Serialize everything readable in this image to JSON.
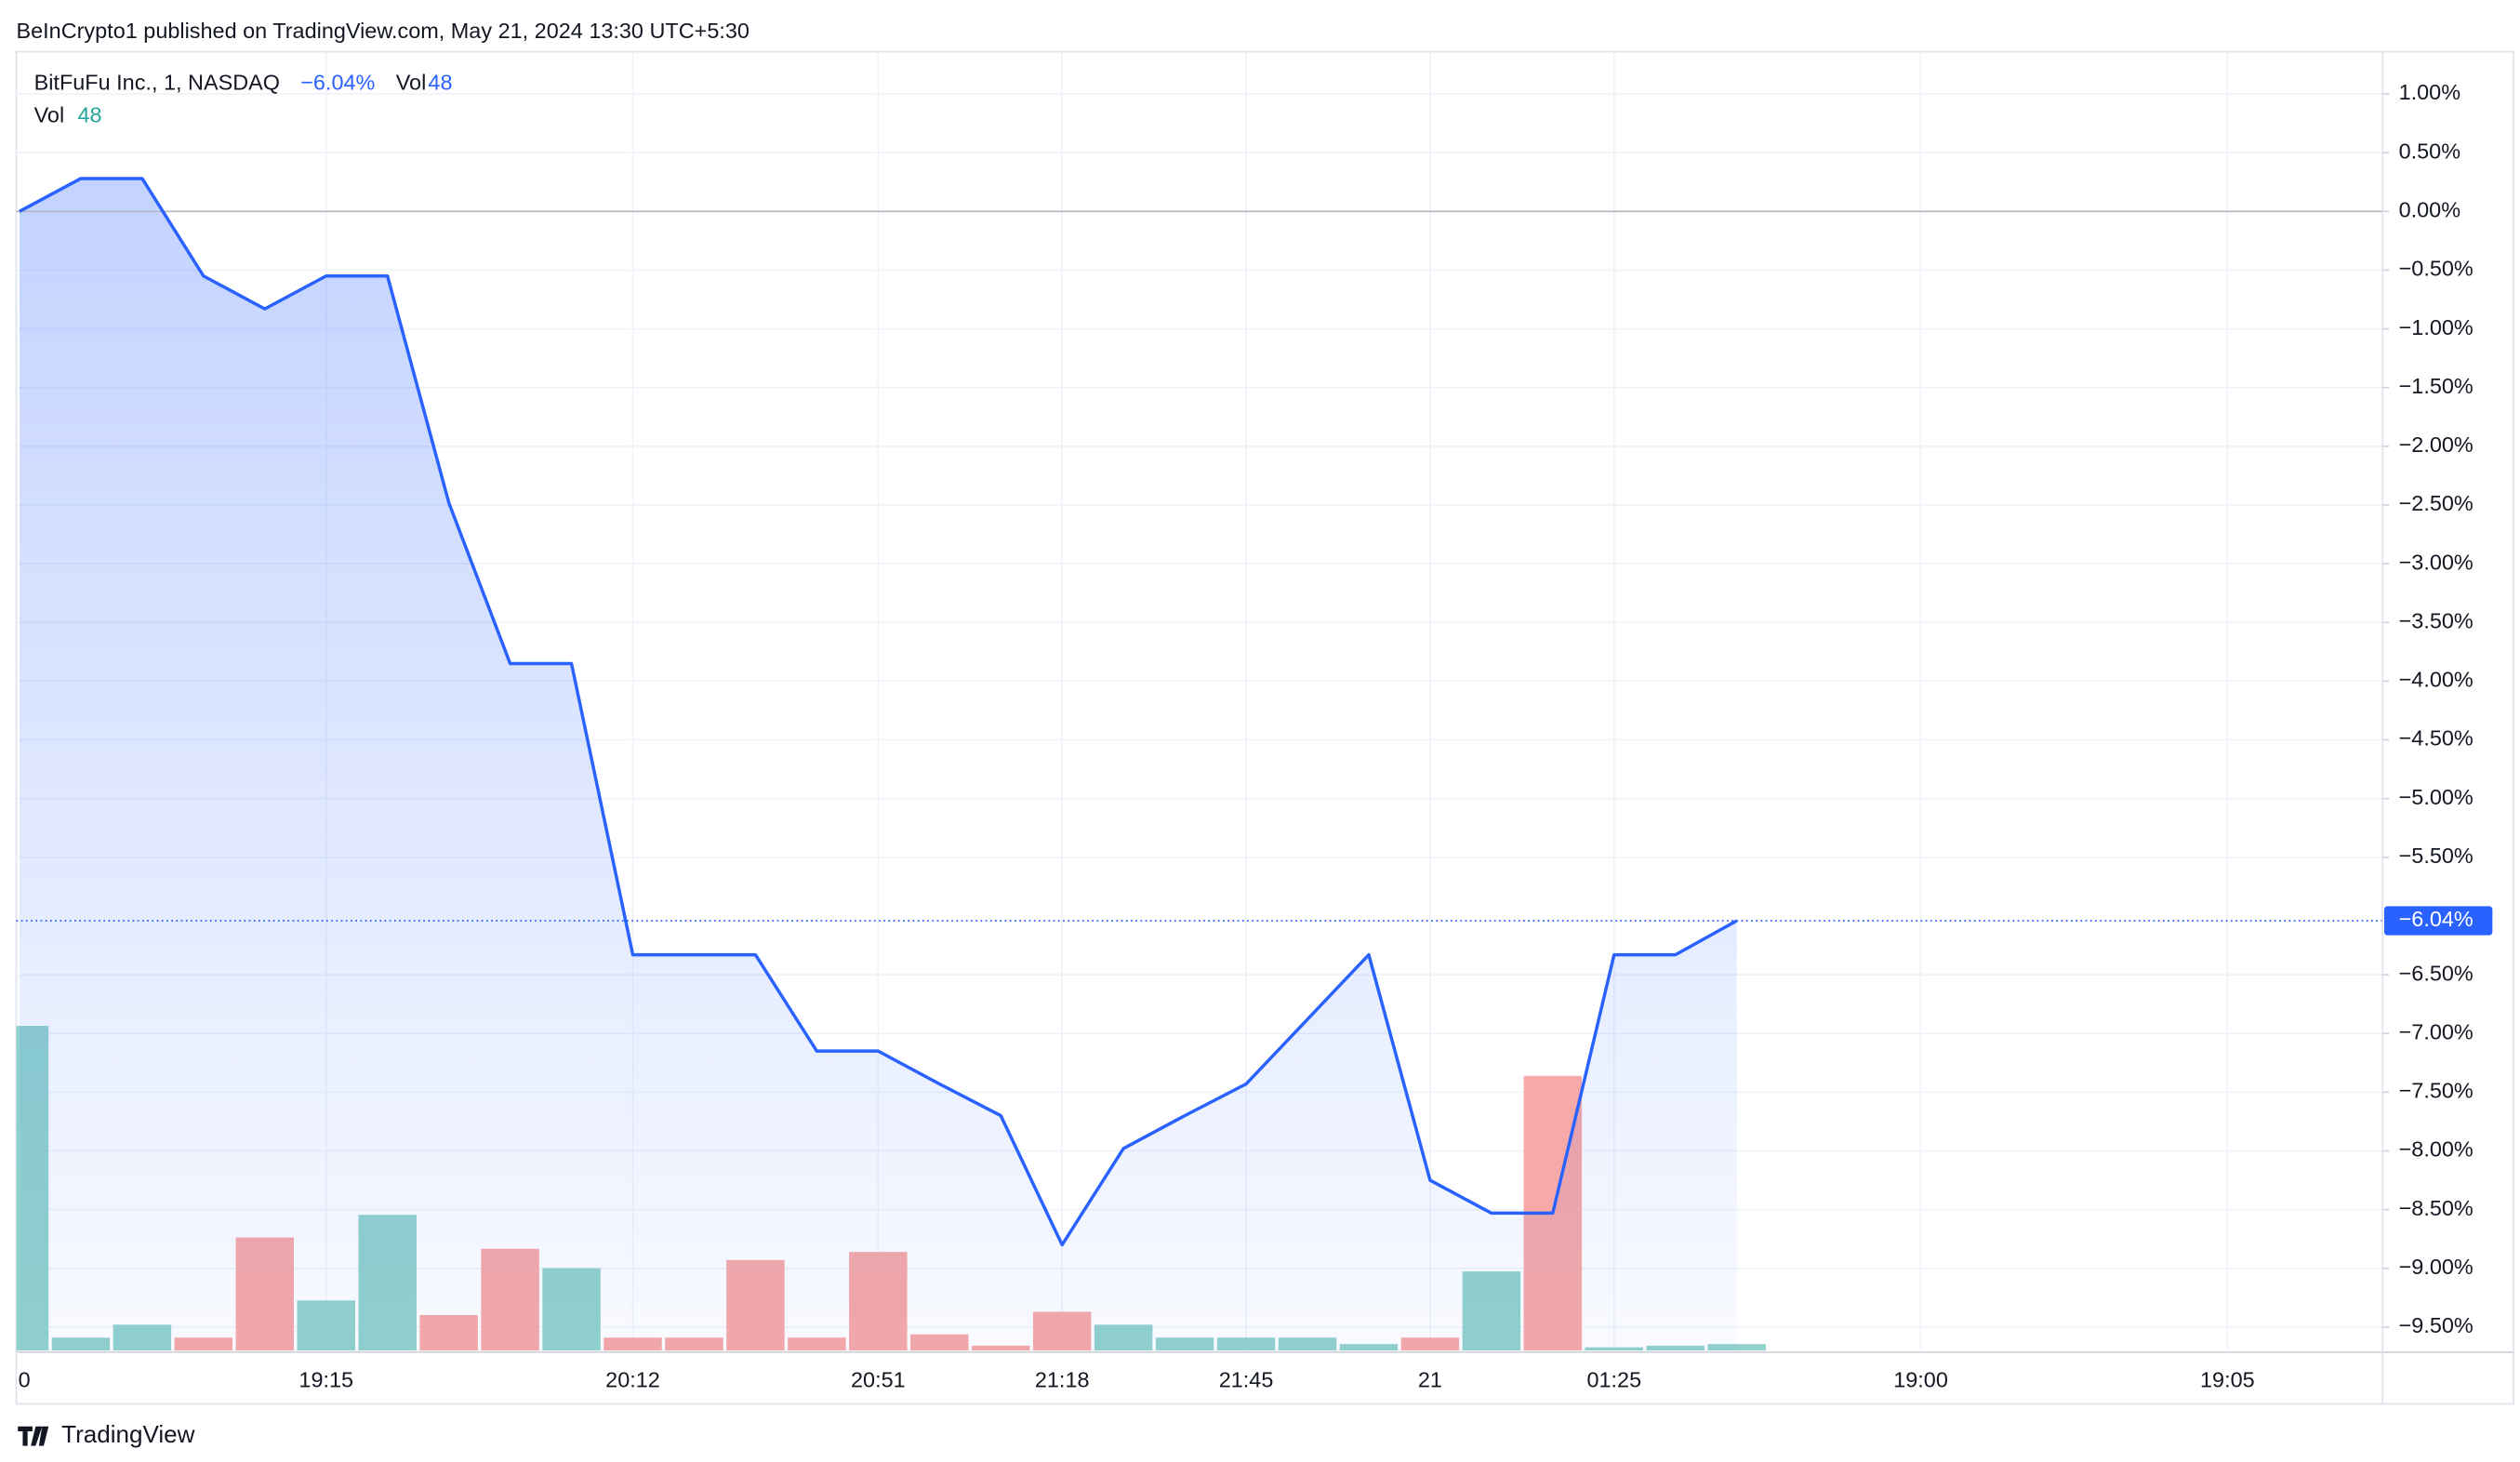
{
  "header": "BeInCrypto1 published on TradingView.com, May 21, 2024 13:30 UTC+5:30",
  "footer": "TradingView",
  "chart_data": {
    "type": "line",
    "categories": [
      "0",
      null,
      null,
      null,
      null,
      "19:15",
      null,
      null,
      null,
      null,
      "20:12",
      null,
      null,
      null,
      "20:51",
      null,
      null,
      "21:18",
      null,
      null,
      "21:45",
      null,
      null,
      "21",
      null,
      null,
      "01:25",
      null,
      null,
      null,
      null,
      "19:00",
      null,
      null,
      null,
      null,
      "19:05"
    ],
    "series": [
      {
        "name": "BitFuFu Inc., 1, NASDAQ",
        "color": "#2962ff",
        "values": [
          0.0,
          0.28,
          0.28,
          -0.55,
          -0.83,
          -0.55,
          -0.55,
          -2.48,
          -3.85,
          -3.85,
          -6.33,
          -6.33,
          -6.33,
          -7.15,
          -7.15,
          -7.43,
          -7.7,
          -8.8,
          -7.98,
          -7.7,
          -7.43,
          -6.88,
          -6.33,
          -8.25,
          -8.53,
          -8.53,
          -6.33,
          -6.33,
          -6.04,
          null,
          null,
          null,
          null,
          null,
          null,
          null,
          null
        ]
      },
      {
        "name": "Vol",
        "type": "bar",
        "values": [
          2412,
          96,
          192,
          96,
          840,
          372,
          1008,
          264,
          756,
          612,
          96,
          96,
          672,
          96,
          732,
          120,
          36,
          288,
          192,
          96,
          96,
          96,
          48,
          96,
          588,
          2040,
          24,
          36,
          48,
          null,
          null,
          null,
          null,
          null,
          null,
          null,
          null
        ],
        "colors": [
          "#92d2cc",
          "#92d2cc",
          "#92d2cc",
          "#f7a9a7",
          "#f7a9a7",
          "#92d2cc",
          "#92d2cc",
          "#f7a9a7",
          "#f7a9a7",
          "#92d2cc",
          "#f7a9a7",
          "#f7a9a7",
          "#f7a9a7",
          "#f7a9a7",
          "#f7a9a7",
          "#f7a9a7",
          "#f7a9a7",
          "#f7a9a7",
          "#92d2cc",
          "#92d2cc",
          "#92d2cc",
          "#92d2cc",
          "#92d2cc",
          "#f7a9a7",
          "#92d2cc",
          "#f7a9a7",
          "#92d2cc",
          "#92d2cc",
          "#92d2cc",
          null,
          null,
          null,
          null,
          null,
          null,
          null,
          null
        ]
      }
    ],
    "ylim": [
      -9.7,
      1.36
    ],
    "yticks": [
      {
        "value": 1,
        "label": "1.00%"
      },
      {
        "value": 0.5,
        "label": "0.50%"
      },
      {
        "value": 0,
        "label": "0.00%"
      },
      {
        "value": -0.5,
        "label": "−0.50%"
      },
      {
        "value": -1,
        "label": "−1.00%"
      },
      {
        "value": -1.5,
        "label": "−1.50%"
      },
      {
        "value": -2,
        "label": "−2.00%"
      },
      {
        "value": -2.5,
        "label": "−2.50%"
      },
      {
        "value": -3,
        "label": "−3.00%"
      },
      {
        "value": -3.5,
        "label": "−3.50%"
      },
      {
        "value": -4,
        "label": "−4.00%"
      },
      {
        "value": -4.5,
        "label": "−4.50%"
      },
      {
        "value": -5,
        "label": "−5.00%"
      },
      {
        "value": -5.5,
        "label": "−5.50%"
      },
      {
        "value": -6.5,
        "label": "−6.50%"
      },
      {
        "value": -7,
        "label": "−7.00%"
      },
      {
        "value": -7.5,
        "label": "−7.50%"
      },
      {
        "value": -8,
        "label": "−8.00%"
      },
      {
        "value": -8.5,
        "label": "−8.50%"
      },
      {
        "value": -9,
        "label": "−9.00%"
      },
      {
        "value": -9.5,
        "label": "−9.50%"
      }
    ],
    "baseline": 0,
    "last_value": {
      "value": -6.04,
      "label": "−6.04%"
    },
    "grid": true
  }
}
